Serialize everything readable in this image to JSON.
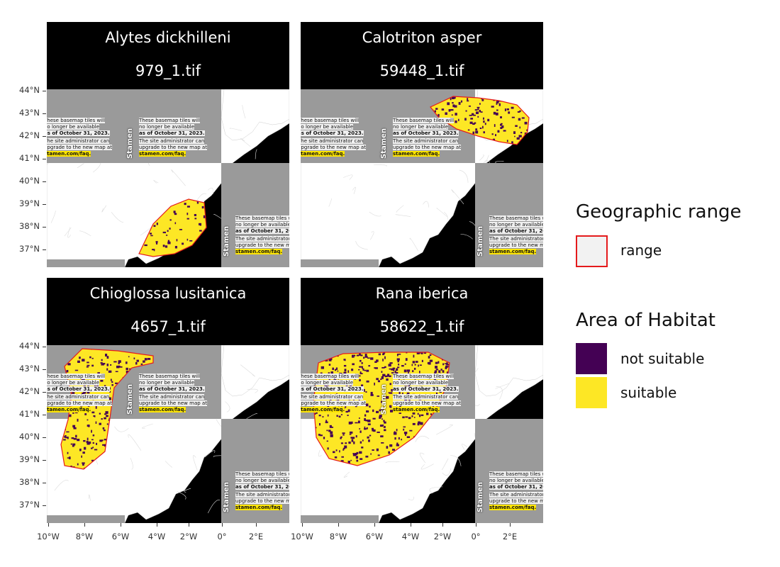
{
  "panels": [
    {
      "title": "Alytes dickhilleni",
      "file": "979_1.tif"
    },
    {
      "title": "Calotriton asper",
      "file": "59448_1.tif"
    },
    {
      "title": "Chioglossa lusitanica",
      "file": "4657_1.tif"
    },
    {
      "title": "Rana iberica",
      "file": "58622_1.tif"
    }
  ],
  "stamen_notice": {
    "line1": "These basemap tiles will",
    "line2": "no longer be available",
    "line3": "as of October 31, 2023.",
    "line4": "The site administrator can",
    "line5": "upgrade to the new map at",
    "line6": "stamen.com/faq.",
    "brand": "Stamen"
  },
  "axes": {
    "y_ticks": [
      "44°N",
      "43°N",
      "42°N",
      "41°N",
      "40°N",
      "39°N",
      "38°N",
      "37°N"
    ],
    "x_ticks": [
      "10°W",
      "8°W",
      "6°W",
      "4°W",
      "2°W",
      "0°",
      "2°E"
    ]
  },
  "legend": {
    "range_title": "Geographic range",
    "range_label": "range",
    "aoh_title": "Area of Habitat",
    "aoh_not_suitable": "not suitable",
    "aoh_suitable": "suitable"
  },
  "colors": {
    "strip_bg": "#000000",
    "not_suitable": "#440154",
    "suitable": "#fde725",
    "range_outline": "#e41a1c",
    "range_fill": "#f2f2f2",
    "tile_placeholder": "#9a9a9a"
  }
}
